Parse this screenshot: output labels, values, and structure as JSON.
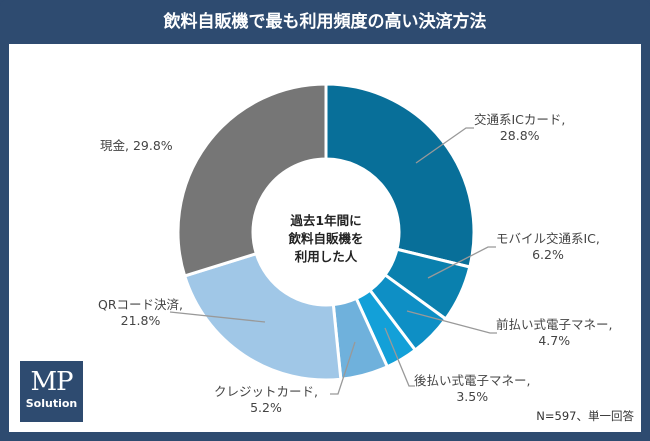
{
  "title": "飲料自販機で最も利用頻度の高い決済方法",
  "center_label": [
    "過去1年間に",
    "飲料自販機を",
    "利用した人"
  ],
  "note": "N=597、単一回答",
  "logo": {
    "mp": "MP",
    "solution": "Solution"
  },
  "chart_data": {
    "type": "pie",
    "donut": true,
    "title": "飲料自販機で最も利用頻度の高い決済方法",
    "slices": [
      {
        "name": "交通系ICカード",
        "value": 28.8,
        "label": "28.8%",
        "color": "#086f99"
      },
      {
        "name": "モバイル交通系IC",
        "value": 6.2,
        "label": "6.2%",
        "color": "#0a80ae"
      },
      {
        "name": "前払い式電子マネー",
        "value": 4.7,
        "label": "4.7%",
        "color": "#0e8fc5"
      },
      {
        "name": "後払い式電子マネー",
        "value": 3.5,
        "label": "3.5%",
        "color": "#13a0d8"
      },
      {
        "name": "クレジットカード",
        "value": 5.2,
        "label": "5.2%",
        "color": "#6fb1dc"
      },
      {
        "name": "QRコード決済",
        "value": 21.8,
        "label": "21.8%",
        "color": "#a0c7e7"
      },
      {
        "name": "現金",
        "value": 29.8,
        "label": "29.8%",
        "color": "#767676"
      }
    ]
  }
}
